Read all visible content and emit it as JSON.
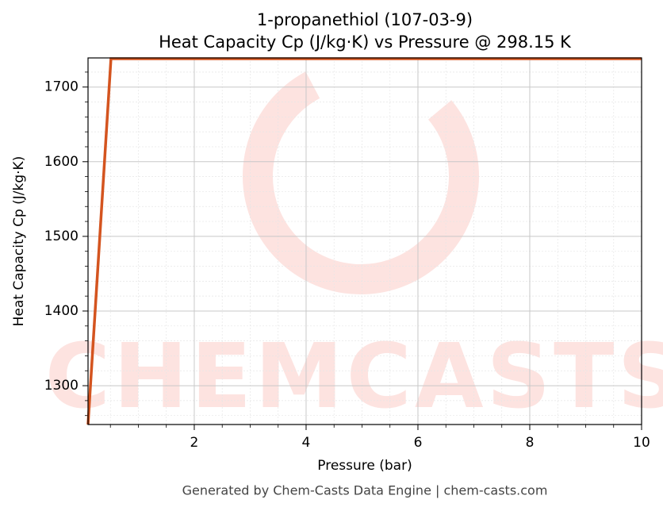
{
  "chart_data": {
    "type": "line",
    "title": "1-propanethiol (107-03-9)",
    "subtitle": "Heat Capacity Cp (J/kg·K) vs Pressure @ 298.15 K",
    "xlabel": "Pressure (bar)",
    "ylabel": "Heat Capacity Cp (J/kg·K)",
    "footer": "Generated by Chem-Casts Data Engine | chem-casts.com",
    "watermark": "CHEMCASTS",
    "x": [
      0.1,
      0.51,
      10
    ],
    "series": [
      {
        "name": "Cp",
        "color": "#d4541f",
        "values": [
          1248,
          1738,
          1738
        ]
      }
    ],
    "xlim": [
      0.1,
      10
    ],
    "ylim": [
      1248,
      1739
    ],
    "xticks": [
      2,
      4,
      6,
      8,
      10
    ],
    "yticks": [
      1300,
      1400,
      1500,
      1600,
      1700
    ],
    "xminorticks": [
      0.5,
      1,
      1.5,
      2.5,
      3,
      3.5,
      4.5,
      5,
      5.5,
      6.5,
      7,
      7.5,
      8.5,
      9,
      9.5
    ],
    "yminorticks": [
      1260,
      1280,
      1320,
      1340,
      1360,
      1380,
      1420,
      1440,
      1460,
      1480,
      1520,
      1540,
      1560,
      1580,
      1620,
      1640,
      1660,
      1680,
      1720
    ],
    "grid": true
  }
}
